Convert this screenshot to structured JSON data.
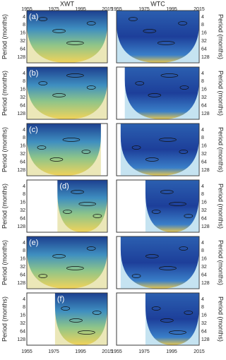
{
  "columns": [
    "XWT",
    "WTC"
  ],
  "x_ticks": [
    1955,
    1975,
    1995,
    2015
  ],
  "y_ticks": [
    4,
    8,
    16,
    32,
    64,
    128
  ],
  "y_label": "Period (months)",
  "panels": [
    "(a)",
    "(b)",
    "(c)",
    "(d)",
    "(e)",
    "(f)"
  ]
}
